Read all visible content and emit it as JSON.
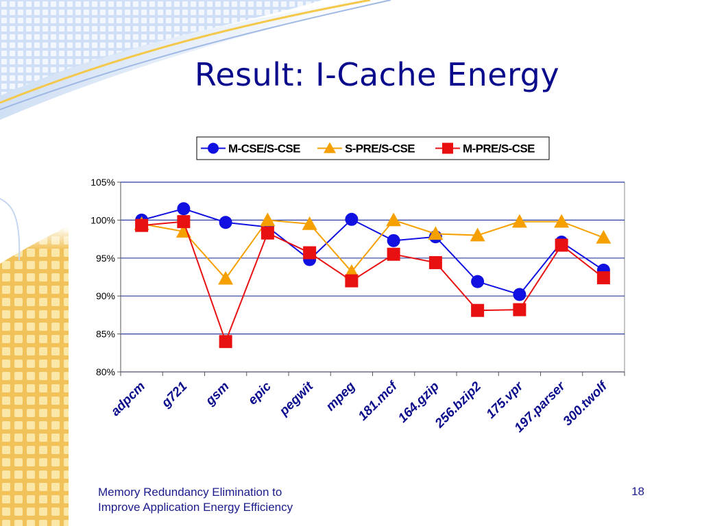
{
  "slide": {
    "title": "Result: I-Cache Energy",
    "footer_line1": "Memory Redundancy Elimination to",
    "footer_line2": "Improve Application Energy Efficiency",
    "page_number": "18"
  },
  "colors": {
    "title": "#0a0a8c",
    "footer": "#1a1a8c",
    "grid": "#2a3a9a",
    "series_m_cse": "#1010e0",
    "series_s_pre": "#f5a000",
    "series_m_pre": "#e81010",
    "tick_labels": "#0a0a8c"
  },
  "chart_data": {
    "type": "line",
    "categories": [
      "adpcm",
      "g721",
      "gsm",
      "epic",
      "pegwit",
      "mpeg",
      "181.mcf",
      "164.gzip",
      "256.bzip2",
      "175.vpr",
      "197.parser",
      "300.twolf"
    ],
    "series": [
      {
        "name": "M-CSE/S-CSE",
        "marker": "circle",
        "color": "#1010e0",
        "values": [
          100.0,
          101.5,
          99.7,
          99.1,
          94.8,
          100.1,
          97.3,
          97.8,
          91.9,
          90.2,
          97.1,
          93.4
        ]
      },
      {
        "name": "S-PRE/S-CSE",
        "marker": "triangle",
        "color": "#f5a000",
        "values": [
          99.5,
          98.5,
          92.3,
          100.0,
          99.5,
          93.2,
          100.0,
          98.2,
          98.0,
          99.8,
          99.8,
          97.7
        ]
      },
      {
        "name": "M-PRE/S-CSE",
        "marker": "square",
        "color": "#e81010",
        "values": [
          99.3,
          99.8,
          84.0,
          98.3,
          95.7,
          92.0,
          95.5,
          94.4,
          88.1,
          88.2,
          96.7,
          92.4
        ]
      }
    ],
    "ylim": [
      80,
      105
    ],
    "yticks": [
      80,
      85,
      90,
      95,
      100,
      105
    ],
    "ytick_labels": [
      "80%",
      "85%",
      "90%",
      "95%",
      "100%",
      "105%"
    ],
    "grid": true,
    "legend_position": "top",
    "title": "",
    "xlabel": "",
    "ylabel": ""
  }
}
